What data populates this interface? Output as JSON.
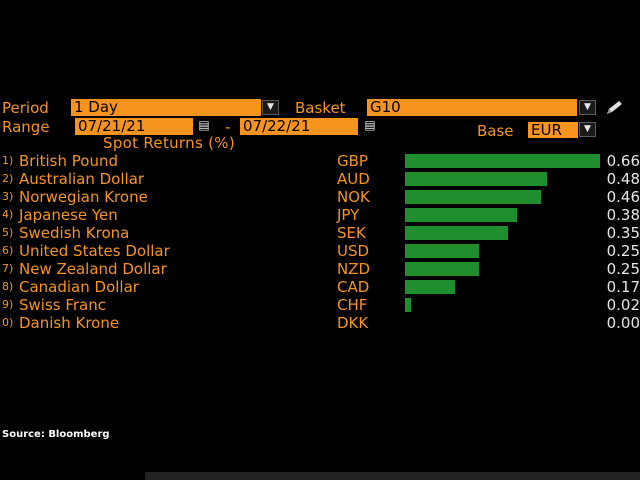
{
  "controls": {
    "period_label": "Period",
    "period_value": "1 Day",
    "basket_label": "Basket",
    "basket_value": "G10",
    "range_label": "Range",
    "range_start": "07/21/21",
    "range_sep": "-",
    "range_end": "07/22/21",
    "base_label": "Base",
    "base_value": "EUR"
  },
  "icons": {
    "dropdown": "triangle-down",
    "calendar": "calendar-icon",
    "edit": "pencil-icon"
  },
  "colors": {
    "background": "#000000",
    "accent": "#f7941d",
    "bar": "#1f8f2e",
    "value_text": "#e6e6e6"
  },
  "chart_data": {
    "type": "bar",
    "orientation": "horizontal",
    "title": "Spot Returns (%)",
    "ranks": [
      "1)",
      "2)",
      "3)",
      "4)",
      "5)",
      "6)",
      "7)",
      "8)",
      "9)",
      "0)"
    ],
    "categories": [
      "British Pound",
      "Australian Dollar",
      "Norwegian Krone",
      "Japanese Yen",
      "Swedish Krona",
      "United States Dollar",
      "New Zealand Dollar",
      "Canadian Dollar",
      "Swiss Franc",
      "Danish Krone"
    ],
    "codes": [
      "GBP",
      "AUD",
      "NOK",
      "JPY",
      "SEK",
      "USD",
      "NZD",
      "CAD",
      "CHF",
      "DKK"
    ],
    "values": [
      0.66,
      0.48,
      0.46,
      0.38,
      0.35,
      0.25,
      0.25,
      0.17,
      0.02,
      0.0
    ],
    "value_labels": [
      "0.66",
      "0.48",
      "0.46",
      "0.38",
      "0.35",
      "0.25",
      "0.25",
      "0.17",
      "0.02",
      "0.00"
    ],
    "xlim": [
      0,
      0.66
    ]
  },
  "footer": {
    "source": "Source: Bloomberg"
  }
}
